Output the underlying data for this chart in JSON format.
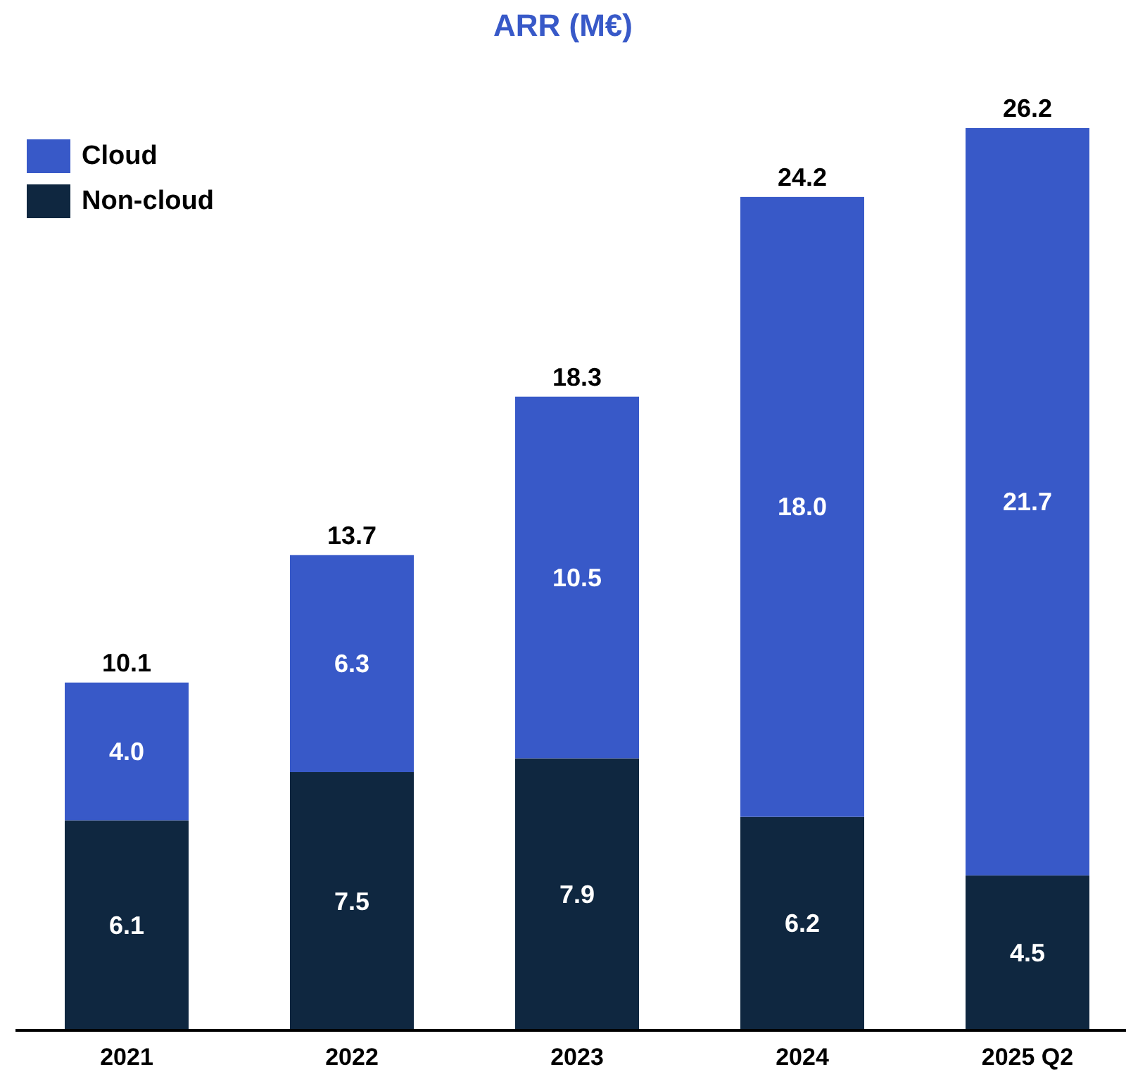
{
  "chart_data": {
    "type": "bar",
    "title": "ARR (M€)",
    "categories": [
      "2021",
      "2022",
      "2023",
      "2024",
      "2025 Q2"
    ],
    "stacked": true,
    "legend": "top left",
    "series": [
      {
        "name": "Non-cloud",
        "color": "#0f2740",
        "values": [
          6.1,
          7.5,
          7.9,
          6.2,
          4.5
        ],
        "value_labels": [
          "6.1",
          "7.5",
          "7.9",
          "6.2",
          "4.5"
        ]
      },
      {
        "name": "Cloud",
        "color": "#3859c8",
        "values": [
          4.0,
          6.3,
          10.5,
          18.0,
          21.7
        ],
        "value_labels": [
          "4.0",
          "6.3",
          "10.5",
          "18.0",
          "21.7"
        ]
      }
    ],
    "totals": [
      "10.1",
      "13.7",
      "18.3",
      "24.2",
      "26.2"
    ]
  }
}
